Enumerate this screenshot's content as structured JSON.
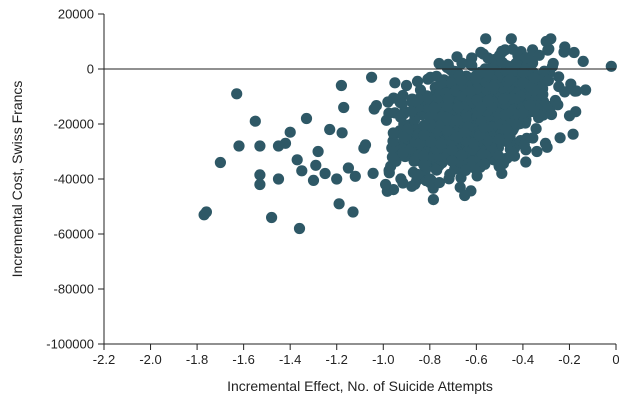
{
  "chart_data": {
    "type": "scatter",
    "xlabel": "Incremental Effect, No. of Suicide Attempts",
    "ylabel": "Incremental Cost, Swiss Francs",
    "xlim": [
      -2.2,
      0
    ],
    "ylim": [
      -100000,
      20000
    ],
    "x_ticks": [
      -2.2,
      -2.0,
      -1.8,
      -1.6,
      -1.4,
      -1.2,
      -1.0,
      -0.8,
      -0.6,
      -0.4,
      -0.2,
      0
    ],
    "x_tick_labels": [
      "-2.2",
      "-2.0",
      "-1.8",
      "-1.6",
      "-1.4",
      "-1.2",
      "-1.0",
      "-0.8",
      "-0.6",
      "-0.4",
      "-0.2",
      "0"
    ],
    "y_ticks": [
      20000,
      0,
      -20000,
      -40000,
      -60000,
      -80000,
      -100000
    ],
    "y_tick_labels": [
      "20000",
      "0",
      "-20000",
      "-40000",
      "-60000",
      "-80000",
      "-100000"
    ],
    "zero_reference_line": true,
    "marker_color": "#2e5866",
    "cluster": {
      "n_points": 1000,
      "center_x": -0.62,
      "center_y": -18000,
      "sd_x": 0.16,
      "sd_y": 9000,
      "slope": 28000
    },
    "points": [
      [
        -1.77,
        -53000
      ],
      [
        -1.76,
        -52000
      ],
      [
        -1.7,
        -34000
      ],
      [
        -1.63,
        -9000
      ],
      [
        -1.62,
        -28000
      ],
      [
        -1.55,
        -19000
      ],
      [
        -1.53,
        -38500
      ],
      [
        -1.53,
        -42000
      ],
      [
        -1.53,
        -28000
      ],
      [
        -1.48,
        -54000
      ],
      [
        -1.45,
        -40000
      ],
      [
        -1.45,
        -28000
      ],
      [
        -1.42,
        -27000
      ],
      [
        -1.4,
        -23000
      ],
      [
        -1.37,
        -33000
      ],
      [
        -1.36,
        -58000
      ],
      [
        -1.35,
        -37000
      ],
      [
        -1.33,
        -18000
      ],
      [
        -1.3,
        -40500
      ],
      [
        -1.29,
        -35000
      ],
      [
        -1.28,
        -30000
      ],
      [
        -1.25,
        -38000
      ],
      [
        -1.23,
        -22000
      ],
      [
        -1.2,
        -40000
      ],
      [
        -1.19,
        -49000
      ],
      [
        -1.18,
        -6000
      ],
      [
        -1.17,
        -14000
      ],
      [
        -1.15,
        -36000
      ],
      [
        -1.13,
        -52000
      ],
      [
        -1.12,
        -39000
      ],
      [
        -1.05,
        -3000
      ],
      [
        -0.99,
        -42000
      ],
      [
        -0.98,
        -12000
      ],
      [
        -0.95,
        -5000
      ],
      [
        -0.9,
        -6000
      ],
      [
        -0.85,
        -11000
      ],
      [
        -0.8,
        -40000
      ],
      [
        -0.76,
        2000
      ],
      [
        -0.75,
        -5000
      ],
      [
        -0.65,
        -46000
      ],
      [
        -0.62,
        4000
      ],
      [
        -0.56,
        11000
      ],
      [
        -0.55,
        4000
      ],
      [
        -0.5,
        5000
      ],
      [
        -0.45,
        11000
      ],
      [
        -0.43,
        2000
      ],
      [
        -0.4,
        -5000
      ],
      [
        -0.37,
        -13000
      ],
      [
        -0.34,
        -30000
      ],
      [
        -0.33,
        5000
      ],
      [
        -0.3,
        10000
      ],
      [
        -0.28,
        11000
      ],
      [
        -0.27,
        2000
      ],
      [
        -0.25,
        -13000
      ],
      [
        -0.24,
        -25000
      ],
      [
        -0.22,
        8000
      ],
      [
        -0.2,
        -17000
      ],
      [
        -0.18,
        6000
      ],
      [
        -0.17,
        -8000
      ],
      [
        -0.02,
        1000
      ]
    ]
  }
}
